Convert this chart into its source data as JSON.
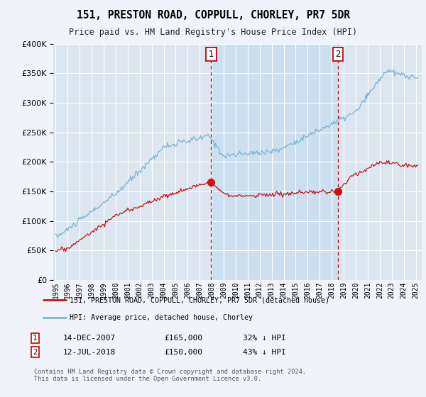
{
  "title": "151, PRESTON ROAD, COPPULL, CHORLEY, PR7 5DR",
  "subtitle": "Price paid vs. HM Land Registry's House Price Index (HPI)",
  "background_color": "#f0f4fa",
  "plot_bg_color": "#dce6f0",
  "shaded_region_color": "#ccdff0",
  "legend_line1": "151, PRESTON ROAD, COPPULL, CHORLEY, PR7 5DR (detached house)",
  "legend_line2": "HPI: Average price, detached house, Chorley",
  "footer": "Contains HM Land Registry data © Crown copyright and database right 2024.\nThis data is licensed under the Open Government Licence v3.0.",
  "transaction1_date": "14-DEC-2007",
  "transaction1_price": "£165,000",
  "transaction1_hpi": "32% ↓ HPI",
  "transaction2_date": "12-JUL-2018",
  "transaction2_price": "£150,000",
  "transaction2_hpi": "43% ↓ HPI",
  "transaction1_year": 2007.96,
  "transaction1_value": 165000,
  "transaction2_year": 2018.54,
  "transaction2_value": 150000,
  "ylim": [
    0,
    400000
  ],
  "xlim_start": 1994.8,
  "xlim_end": 2025.5,
  "hpi_color": "#7ab3d4",
  "price_color": "#cc1111",
  "vline_color": "#cc0000",
  "yticks": [
    0,
    50000,
    100000,
    150000,
    200000,
    250000,
    300000,
    350000,
    400000
  ]
}
